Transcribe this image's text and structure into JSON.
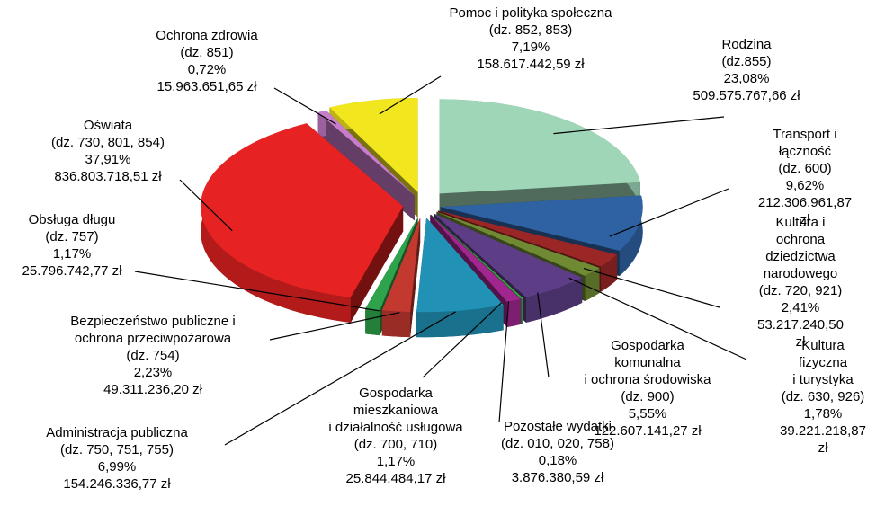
{
  "chart_data": {
    "type": "pie",
    "categories": [
      "Rodzina",
      "Transport i łączność",
      "Kultura  i ochrona\ndziedzictwa\nnarodowego",
      "Kultura  fizyczna\ni  turystyka",
      "Gospodarka\nkomunalna\ni ochrona środowiska",
      "Pozostałe wydatki",
      "Gospodarka\nmieszkaniowa\ni działalność usługowa",
      "Administracja publiczna",
      "Bezpieczeństwo publiczne i\nochrona przeciwpożarowa",
      "Obsługa długu",
      "Oświata",
      "Ochrona zdrowia",
      "Pomoc i polityka społeczna"
    ],
    "codes": [
      "(dz.855)",
      "(dz. 600)",
      "(dz. 720, 921)",
      "(dz. 630, 926)",
      "(dz. 900)",
      "(dz. 010, 020, 758)",
      "(dz. 700, 710)",
      "(dz. 750, 751, 755)",
      "(dz. 754)",
      "(dz. 757)",
      "(dz. 730, 801, 854)",
      "(dz. 851)",
      "(dz. 852, 853)"
    ],
    "values": [
      23.08,
      9.62,
      2.41,
      1.78,
      5.55,
      0.18,
      1.17,
      6.99,
      2.23,
      1.17,
      37.91,
      0.72,
      7.19
    ],
    "value_labels": [
      "23,08%",
      "9,62%",
      "2,41%",
      "1,78%",
      "5,55%",
      "0,18%",
      "1,17%",
      "6,99%",
      "2,23%",
      "1,17%",
      "37,91%",
      "0,72%",
      "7,19%"
    ],
    "amounts": [
      "509.575.767,66 zł",
      "212.306.961,87 zł",
      "53.217.240,50 zł",
      "39.221.218,87 zł",
      "122.607.141,27 zł",
      "3.876.380,59 zł",
      "25.844.484,17 zł",
      "154.246.336,77 zł",
      "49.311.236,20 zł",
      "25.796.742,77 zł",
      "836.803.718,51 zł",
      "15.963.651,65 zł",
      "158.617.442,59 zł"
    ],
    "colors": [
      "#9fd6b8",
      "#2f62a3",
      "#9b2626",
      "#6f8a32",
      "#5c3d86",
      "#3aa845",
      "#a1268f",
      "#2191b5",
      "#c4392f",
      "#2ea34c",
      "#e62222",
      "#c77ccc",
      "#f2e61e"
    ]
  }
}
